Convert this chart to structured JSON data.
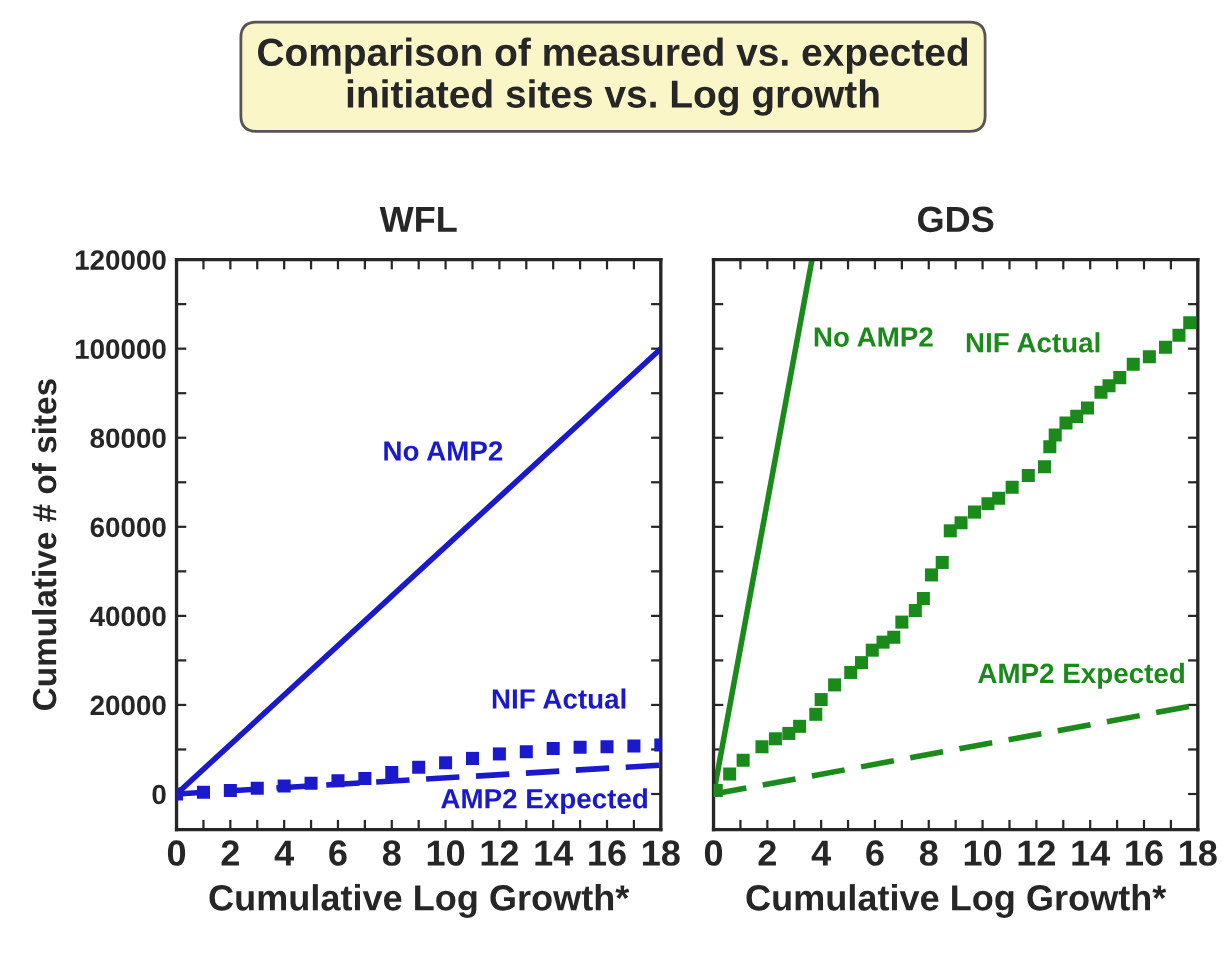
{
  "chart_data": [
    {
      "type": "line",
      "title": "WFL",
      "xlabel": "Cumulative Log Growth*",
      "ylabel": "Cumulative # of sites",
      "annotations": [
        "Comparison of measured vs. expected\ninitiated sites vs. Log growth"
      ],
      "xlim": [
        0,
        18
      ],
      "ylim": [
        -8000,
        120000
      ],
      "xticks": [
        0,
        {
          "value": 1,
          "label": null
        },
        2,
        {
          "value": 3,
          "label": null
        },
        4,
        {
          "value": 5,
          "label": null
        },
        6,
        {
          "value": 7,
          "label": null
        },
        8,
        {
          "value": 9,
          "label": null
        },
        10,
        {
          "value": 11,
          "label": null
        },
        12,
        {
          "value": 13,
          "label": null
        },
        14,
        {
          "value": 15,
          "label": null
        },
        16,
        {
          "value": 17,
          "label": null
        },
        18
      ],
      "yticks": [
        0,
        {
          "value": 10000,
          "label": null
        },
        20000,
        {
          "value": 30000,
          "label": null
        },
        40000,
        {
          "value": 50000,
          "label": null
        },
        60000,
        {
          "value": 70000,
          "label": null
        },
        80000,
        {
          "value": 90000,
          "label": null
        },
        100000,
        {
          "value": 110000,
          "label": null
        },
        120000
      ],
      "grid": false,
      "legend": false,
      "series": [
        {
          "name": "No AMP2",
          "color": "#1a1acc",
          "x": [
            0,
            18
          ],
          "values": [
            0,
            100000
          ]
        },
        {
          "name": "AMP2 Expected",
          "line_style": "dashed",
          "color": "#1a1acc",
          "x": [
            0,
            18
          ],
          "values": [
            0,
            6500
          ]
        },
        {
          "name": "NIF Actual",
          "type": "scatter",
          "marker": "square",
          "color": "#1a1acc",
          "x": [
            0,
            1,
            2,
            3,
            4,
            5,
            6,
            7,
            8,
            9,
            10,
            11,
            12,
            13,
            14,
            15,
            16,
            17,
            18
          ],
          "values": [
            0,
            400,
            800,
            1300,
            1800,
            2400,
            3000,
            3500,
            4800,
            6000,
            7000,
            8000,
            9000,
            9500,
            10200,
            10500,
            10600,
            10800,
            11000
          ]
        }
      ]
    },
    {
      "type": "line",
      "title": "GDS",
      "xlabel": "Cumulative Log Growth*",
      "tick_labels": "x",
      "xlim": [
        0,
        18
      ],
      "ylim": [
        -8000,
        120000
      ],
      "xticks": [
        0,
        {
          "value": 1,
          "label": null
        },
        2,
        {
          "value": 3,
          "label": null
        },
        4,
        {
          "value": 5,
          "label": null
        },
        6,
        {
          "value": 7,
          "label": null
        },
        8,
        {
          "value": 9,
          "label": null
        },
        10,
        {
          "value": 11,
          "label": null
        },
        12,
        {
          "value": 13,
          "label": null
        },
        14,
        {
          "value": 15,
          "label": null
        },
        16,
        {
          "value": 17,
          "label": null
        },
        18
      ],
      "yticks": [
        0,
        {
          "value": 10000,
          "label": null
        },
        20000,
        {
          "value": 30000,
          "label": null
        },
        40000,
        {
          "value": 50000,
          "label": null
        },
        60000,
        {
          "value": 70000,
          "label": null
        },
        80000,
        {
          "value": 90000,
          "label": null
        },
        100000,
        {
          "value": 110000,
          "label": null
        },
        120000
      ],
      "grid": false,
      "legend": false,
      "series": [
        {
          "name": "No AMP2",
          "color": "#1a8a1a",
          "x": [
            0,
            3.66
          ],
          "values": [
            0,
            120000
          ]
        },
        {
          "name": "AMP2 Expected",
          "line_style": "dashed",
          "color": "#1a8a1a",
          "x": [
            0,
            18
          ],
          "values": [
            0,
            20000
          ]
        },
        {
          "name": "NIF Actual",
          "type": "scatter",
          "marker": "square",
          "color": "#1a8a1a",
          "x": [
            0.1,
            0.6,
            1.1,
            1.8,
            2.3,
            2.8,
            3.2,
            3.8,
            4.0,
            4.5,
            5.1,
            5.5,
            5.9,
            6.3,
            6.7,
            7.0,
            7.5,
            7.8,
            8.1,
            8.5,
            8.8,
            9.2,
            9.7,
            10.2,
            10.6,
            11.1,
            11.7,
            12.3,
            12.5,
            12.7,
            13.1,
            13.5,
            13.9,
            14.4,
            14.7,
            15.1,
            15.6,
            16.2,
            16.8,
            17.3,
            17.7
          ],
          "values": [
            800,
            4500,
            7600,
            10600,
            12400,
            13600,
            15200,
            17900,
            21200,
            24500,
            27300,
            29500,
            32300,
            34100,
            35200,
            38600,
            41200,
            43900,
            49200,
            52000,
            59100,
            60900,
            63300,
            65200,
            66400,
            68900,
            71500,
            73500,
            78000,
            80600,
            83300,
            84800,
            86700,
            90200,
            91700,
            93500,
            96500,
            98200,
            100300,
            103000,
            105800
          ]
        }
      ]
    }
  ]
}
